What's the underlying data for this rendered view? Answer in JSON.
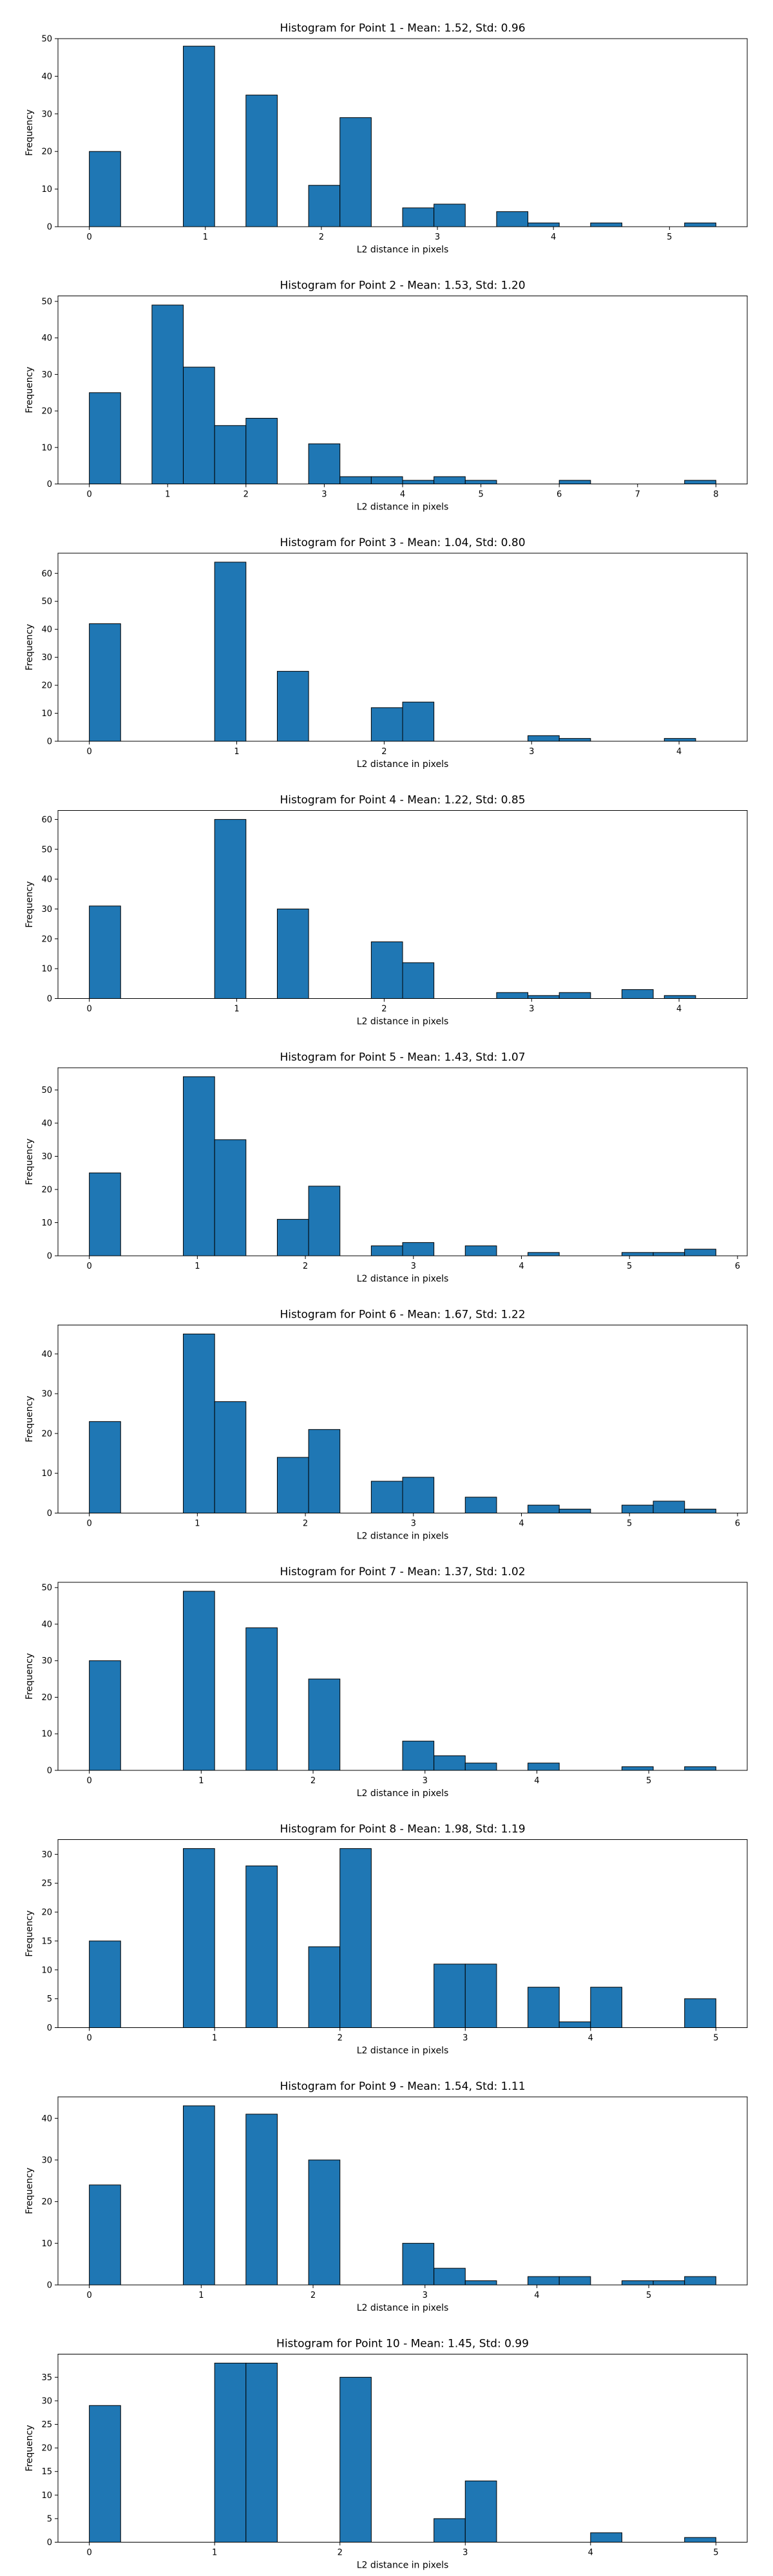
{
  "figure": {
    "xlabel": "L2 distance in pixels",
    "ylabel": "Frequency",
    "bar_color": "#1f77b4",
    "edge_color": "#000000"
  },
  "chart_data": [
    {
      "type": "bar",
      "title": "Histogram for Point 1 - Mean: 1.52, Std: 0.96",
      "xlabel": "L2 distance in pixels",
      "ylabel": "Frequency",
      "xlim": [
        -0.27,
        5.67
      ],
      "ylim": [
        0,
        50
      ],
      "xticks": [
        0,
        1,
        2,
        3,
        4,
        5
      ],
      "yticks": [
        0,
        10,
        20,
        30,
        40,
        50
      ],
      "bin_width": 0.27,
      "bins": [
        {
          "x0": 0.0,
          "count": 20
        },
        {
          "x0": 0.81,
          "count": 48
        },
        {
          "x0": 1.35,
          "count": 35
        },
        {
          "x0": 1.89,
          "count": 11
        },
        {
          "x0": 2.16,
          "count": 29
        },
        {
          "x0": 2.7,
          "count": 5
        },
        {
          "x0": 2.97,
          "count": 6
        },
        {
          "x0": 3.51,
          "count": 4
        },
        {
          "x0": 3.78,
          "count": 1
        },
        {
          "x0": 4.32,
          "count": 1
        },
        {
          "x0": 5.13,
          "count": 1
        }
      ]
    },
    {
      "type": "bar",
      "title": "Histogram for Point 2 - Mean: 1.53, Std: 1.20",
      "xlabel": "L2 distance in pixels",
      "ylabel": "Frequency",
      "xlim": [
        -0.4,
        8.4
      ],
      "ylim": [
        0,
        51.5
      ],
      "xticks": [
        0,
        1,
        2,
        3,
        4,
        5,
        6,
        7,
        8
      ],
      "yticks": [
        0,
        10,
        20,
        30,
        40,
        50
      ],
      "bin_width": 0.4,
      "bins": [
        {
          "x0": 0.0,
          "count": 25
        },
        {
          "x0": 0.8,
          "count": 49
        },
        {
          "x0": 1.2,
          "count": 32
        },
        {
          "x0": 1.6,
          "count": 16
        },
        {
          "x0": 2.0,
          "count": 18
        },
        {
          "x0": 2.8,
          "count": 11
        },
        {
          "x0": 3.2,
          "count": 2
        },
        {
          "x0": 3.6,
          "count": 2
        },
        {
          "x0": 4.0,
          "count": 1
        },
        {
          "x0": 4.4,
          "count": 2
        },
        {
          "x0": 4.8,
          "count": 1
        },
        {
          "x0": 6.0,
          "count": 1
        },
        {
          "x0": 7.6,
          "count": 1
        }
      ]
    },
    {
      "type": "bar",
      "title": "Histogram for Point 3 - Mean: 1.04, Std: 0.80",
      "xlabel": "L2 distance in pixels",
      "ylabel": "Frequency",
      "xlim": [
        -0.2125,
        4.4625
      ],
      "ylim": [
        0,
        67.2
      ],
      "xticks": [
        0,
        1,
        2,
        3,
        4
      ],
      "yticks": [
        0,
        10,
        20,
        30,
        40,
        50,
        60
      ],
      "bin_width": 0.2125,
      "bins": [
        {
          "x0": 0.0,
          "count": 42
        },
        {
          "x0": 0.85,
          "count": 64
        },
        {
          "x0": 1.275,
          "count": 25
        },
        {
          "x0": 1.9125,
          "count": 12
        },
        {
          "x0": 2.125,
          "count": 14
        },
        {
          "x0": 2.975,
          "count": 2
        },
        {
          "x0": 3.1875,
          "count": 1
        },
        {
          "x0": 3.9,
          "count": 1
        }
      ]
    },
    {
      "type": "bar",
      "title": "Histogram for Point 4 - Mean: 1.22, Std: 0.85",
      "xlabel": "L2 distance in pixels",
      "ylabel": "Frequency",
      "xlim": [
        -0.2125,
        4.4625
      ],
      "ylim": [
        0,
        63
      ],
      "xticks": [
        0,
        1,
        2,
        3,
        4
      ],
      "yticks": [
        0,
        10,
        20,
        30,
        40,
        50,
        60
      ],
      "bin_width": 0.2125,
      "bins": [
        {
          "x0": 0.0,
          "count": 31
        },
        {
          "x0": 0.85,
          "count": 60
        },
        {
          "x0": 1.275,
          "count": 30
        },
        {
          "x0": 1.9125,
          "count": 19
        },
        {
          "x0": 2.125,
          "count": 12
        },
        {
          "x0": 2.7625,
          "count": 2
        },
        {
          "x0": 2.975,
          "count": 1
        },
        {
          "x0": 3.1875,
          "count": 2
        },
        {
          "x0": 3.6125,
          "count": 3
        },
        {
          "x0": 3.9,
          "count": 1
        }
      ]
    },
    {
      "type": "bar",
      "title": "Histogram for Point 5 - Mean: 1.43, Std: 1.07",
      "xlabel": "L2 distance in pixels",
      "ylabel": "Frequency",
      "xlim": [
        -0.29,
        6.09
      ],
      "ylim": [
        0,
        56.7
      ],
      "xticks": [
        0,
        1,
        2,
        3,
        4,
        5,
        6
      ],
      "yticks": [
        0,
        10,
        20,
        30,
        40,
        50
      ],
      "bin_width": 0.29,
      "bins": [
        {
          "x0": 0.0,
          "count": 25
        },
        {
          "x0": 0.87,
          "count": 54
        },
        {
          "x0": 1.16,
          "count": 35
        },
        {
          "x0": 1.74,
          "count": 11
        },
        {
          "x0": 2.03,
          "count": 21
        },
        {
          "x0": 2.61,
          "count": 3
        },
        {
          "x0": 2.9,
          "count": 4
        },
        {
          "x0": 3.48,
          "count": 3
        },
        {
          "x0": 4.06,
          "count": 1
        },
        {
          "x0": 4.93,
          "count": 1
        },
        {
          "x0": 5.22,
          "count": 1
        },
        {
          "x0": 5.51,
          "count": 2
        }
      ]
    },
    {
      "type": "bar",
      "title": "Histogram for Point 6 - Mean: 1.67, Std: 1.22",
      "xlabel": "L2 distance in pixels",
      "ylabel": "Frequency",
      "xlim": [
        -0.29,
        6.09
      ],
      "ylim": [
        0,
        47.25
      ],
      "xticks": [
        0,
        1,
        2,
        3,
        4,
        5,
        6
      ],
      "yticks": [
        0,
        10,
        20,
        30,
        40
      ],
      "bin_width": 0.29,
      "bins": [
        {
          "x0": 0.0,
          "count": 23
        },
        {
          "x0": 0.87,
          "count": 45
        },
        {
          "x0": 1.16,
          "count": 28
        },
        {
          "x0": 1.74,
          "count": 14
        },
        {
          "x0": 2.03,
          "count": 21
        },
        {
          "x0": 2.61,
          "count": 8
        },
        {
          "x0": 2.9,
          "count": 9
        },
        {
          "x0": 3.48,
          "count": 4
        },
        {
          "x0": 4.06,
          "count": 2
        },
        {
          "x0": 4.35,
          "count": 1
        },
        {
          "x0": 4.93,
          "count": 2
        },
        {
          "x0": 5.22,
          "count": 3
        },
        {
          "x0": 5.51,
          "count": 1
        }
      ]
    },
    {
      "type": "bar",
      "title": "Histogram for Point 7 - Mean: 1.37, Std: 1.02",
      "xlabel": "L2 distance in pixels",
      "ylabel": "Frequency",
      "xlim": [
        -0.28,
        5.88
      ],
      "ylim": [
        0,
        51.45
      ],
      "xticks": [
        0,
        1,
        2,
        3,
        4,
        5
      ],
      "yticks": [
        0,
        10,
        20,
        30,
        40,
        50
      ],
      "bin_width": 0.28,
      "bins": [
        {
          "x0": 0.0,
          "count": 30
        },
        {
          "x0": 0.84,
          "count": 49
        },
        {
          "x0": 1.4,
          "count": 39
        },
        {
          "x0": 1.96,
          "count": 25
        },
        {
          "x0": 2.8,
          "count": 8
        },
        {
          "x0": 3.08,
          "count": 4
        },
        {
          "x0": 3.36,
          "count": 2
        },
        {
          "x0": 3.92,
          "count": 2
        },
        {
          "x0": 4.76,
          "count": 1
        },
        {
          "x0": 5.32,
          "count": 1
        }
      ]
    },
    {
      "type": "bar",
      "title": "Histogram for Point 8 - Mean: 1.98, Std: 1.19",
      "xlabel": "L2 distance in pixels",
      "ylabel": "Frequency",
      "xlim": [
        -0.25,
        5.25
      ],
      "ylim": [
        0,
        32.55
      ],
      "xticks": [
        0,
        1,
        2,
        3,
        4,
        5
      ],
      "yticks": [
        0,
        5,
        10,
        15,
        20,
        25,
        30
      ],
      "bin_width": 0.25,
      "bins": [
        {
          "x0": 0.0,
          "count": 15
        },
        {
          "x0": 0.75,
          "count": 31
        },
        {
          "x0": 1.25,
          "count": 28
        },
        {
          "x0": 1.75,
          "count": 14
        },
        {
          "x0": 2.0,
          "count": 31
        },
        {
          "x0": 2.75,
          "count": 11
        },
        {
          "x0": 3.0,
          "count": 11
        },
        {
          "x0": 3.5,
          "count": 7
        },
        {
          "x0": 3.75,
          "count": 1
        },
        {
          "x0": 4.0,
          "count": 7
        },
        {
          "x0": 4.75,
          "count": 5
        }
      ]
    },
    {
      "type": "bar",
      "title": "Histogram for Point 9 - Mean: 1.54, Std: 1.11",
      "xlabel": "L2 distance in pixels",
      "ylabel": "Frequency",
      "xlim": [
        -0.28,
        5.88
      ],
      "ylim": [
        0,
        45.15
      ],
      "xticks": [
        0,
        1,
        2,
        3,
        4,
        5
      ],
      "yticks": [
        0,
        10,
        20,
        30,
        40
      ],
      "bin_width": 0.28,
      "bins": [
        {
          "x0": 0.0,
          "count": 24
        },
        {
          "x0": 0.84,
          "count": 43
        },
        {
          "x0": 1.4,
          "count": 41
        },
        {
          "x0": 1.96,
          "count": 30
        },
        {
          "x0": 2.8,
          "count": 10
        },
        {
          "x0": 3.08,
          "count": 4
        },
        {
          "x0": 3.36,
          "count": 1
        },
        {
          "x0": 3.92,
          "count": 2
        },
        {
          "x0": 4.2,
          "count": 2
        },
        {
          "x0": 4.76,
          "count": 1
        },
        {
          "x0": 5.04,
          "count": 1
        },
        {
          "x0": 5.32,
          "count": 2
        }
      ]
    },
    {
      "type": "bar",
      "title": "Histogram for Point 10 - Mean: 1.45, Std: 0.99",
      "xlabel": "L2 distance in pixels",
      "ylabel": "Frequency",
      "xlim": [
        -0.25,
        5.25
      ],
      "ylim": [
        0,
        39.9
      ],
      "xticks": [
        0,
        1,
        2,
        3,
        4,
        5
      ],
      "yticks": [
        0,
        5,
        10,
        15,
        20,
        25,
        30,
        35
      ],
      "bin_width": 0.25,
      "bins": [
        {
          "x0": 0.0,
          "count": 29
        },
        {
          "x0": 1.0,
          "count": 38
        },
        {
          "x0": 1.25,
          "count": 38
        },
        {
          "x0": 2.0,
          "count": 35
        },
        {
          "x0": 2.75,
          "count": 5
        },
        {
          "x0": 3.0,
          "count": 13
        },
        {
          "x0": 4.0,
          "count": 2
        },
        {
          "x0": 4.75,
          "count": 1
        }
      ]
    }
  ]
}
